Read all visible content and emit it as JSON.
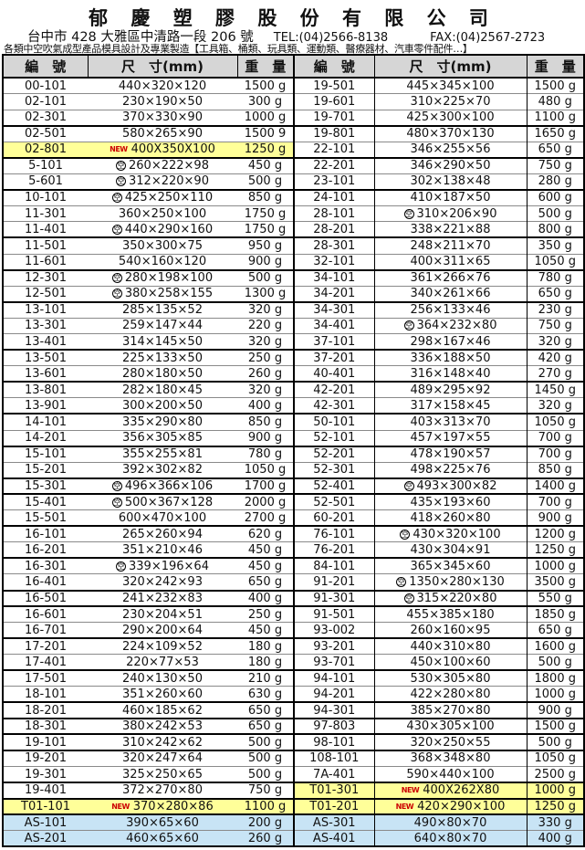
{
  "header": {
    "company_title": "郁 慶 塑 膠 股 份 有 限 公 司",
    "address": "台中市 428 大雅區中清路一段 206 號",
    "tel": "TEL:(04)2566-8138",
    "fax": "FAX:(04)2567-2723",
    "description": "各類中空吹氣成型產品模具設計及專業製造【工具箱、桶類、玩具類、運動類、醫療器材、汽車零件配件…】"
  },
  "table": {
    "columns": [
      "編　號",
      "尺　寸(mm)",
      "重　量"
    ],
    "air_symbol": "空",
    "new_label": "NEW",
    "colors": {
      "highlight_yellow": "#ffff99",
      "highlight_blue": "#c8e4f5",
      "header_grey": "#d6d6d6",
      "new_red": "#cc0000"
    },
    "rows": [
      {
        "t": false,
        "l": {
          "id": "00-101",
          "size": "440×320×120",
          "wt": "1500 g"
        },
        "r": {
          "id": "19-501",
          "size": "445×345×100",
          "wt": "1500 g"
        }
      },
      {
        "t": false,
        "l": {
          "id": "02-101",
          "size": "230×190×50",
          "wt": "300 g"
        },
        "r": {
          "id": "19-601",
          "size": "310×225×70",
          "wt": "480 g"
        }
      },
      {
        "t": false,
        "l": {
          "id": "02-301",
          "size": "370×330×90",
          "wt": "1000 g"
        },
        "r": {
          "id": "19-701",
          "size": "425×300×100",
          "wt": "1100 g"
        }
      },
      {
        "t": true,
        "l": {
          "id": "02-501",
          "size": "580×265×90",
          "wt": "1500 9"
        },
        "r": {
          "id": "19-801",
          "size": "480×370×130",
          "wt": "1650 g"
        }
      },
      {
        "t": false,
        "l": {
          "id": "02-801",
          "new": true,
          "size": "400X350X100",
          "wt": "1250 g",
          "hl": "yellow"
        },
        "r": {
          "id": "22-101",
          "size": "346×255×56",
          "wt": "650 g"
        }
      },
      {
        "t": true,
        "l": {
          "id": "5-101",
          "air": true,
          "size": "260×222×98",
          "wt": "450 g"
        },
        "r": {
          "id": "22-201",
          "size": "346×290×50",
          "wt": "750 g"
        }
      },
      {
        "t": false,
        "l": {
          "id": "5-601",
          "air": true,
          "size": "312×220×90",
          "wt": "500 g"
        },
        "r": {
          "id": "23-101",
          "size": "302×138×48",
          "wt": "280 g"
        }
      },
      {
        "t": true,
        "l": {
          "id": "10-101",
          "air": true,
          "size": "425×250×110",
          "wt": "850 g"
        },
        "r": {
          "id": "24-101",
          "size": "410×187×50",
          "wt": "600 g"
        }
      },
      {
        "t": false,
        "l": {
          "id": "11-301",
          "size": "360×250×100",
          "wt": "1750 g"
        },
        "r": {
          "id": "28-101",
          "air": true,
          "size": "310×206×90",
          "wt": "500 g"
        }
      },
      {
        "t": false,
        "l": {
          "id": "11-401",
          "air": true,
          "size": "440×290×160",
          "wt": "1750 g"
        },
        "r": {
          "id": "28-201",
          "size": "338×221×88",
          "wt": "800 g"
        }
      },
      {
        "t": true,
        "l": {
          "id": "11-501",
          "size": "350×300×75",
          "wt": "950 g"
        },
        "r": {
          "id": "28-301",
          "size": "248×211×70",
          "wt": "350 g"
        }
      },
      {
        "t": false,
        "l": {
          "id": "11-601",
          "size": "540×160×120",
          "wt": "900 g"
        },
        "r": {
          "id": "32-101",
          "size": "400×311×65",
          "wt": "1050 g"
        }
      },
      {
        "t": true,
        "l": {
          "id": "12-301",
          "air": true,
          "size": "280×198×100",
          "wt": "500 g"
        },
        "r": {
          "id": "34-101",
          "size": "361×266×76",
          "wt": "780 g"
        }
      },
      {
        "t": false,
        "l": {
          "id": "12-501",
          "air": true,
          "size": "380×258×155",
          "wt": "1300 g"
        },
        "r": {
          "id": "34-201",
          "size": "340×261×66",
          "wt": "650 g"
        }
      },
      {
        "t": true,
        "l": {
          "id": "13-101",
          "size": "285×135×52",
          "wt": "320 g"
        },
        "r": {
          "id": "34-301",
          "size": "256×133×46",
          "wt": "230 g"
        }
      },
      {
        "t": false,
        "l": {
          "id": "13-301",
          "size": "259×147×44",
          "wt": "220 g"
        },
        "r": {
          "id": "34-401",
          "air": true,
          "size": "364×232×80",
          "wt": "750 g"
        }
      },
      {
        "t": false,
        "l": {
          "id": "13-401",
          "size": "314×145×50",
          "wt": "320 g"
        },
        "r": {
          "id": "37-101",
          "size": "298×167×46",
          "wt": "320 g"
        }
      },
      {
        "t": true,
        "l": {
          "id": "13-501",
          "size": "225×133×50",
          "wt": "250 g"
        },
        "r": {
          "id": "37-201",
          "size": "336×188×50",
          "wt": "420 g"
        }
      },
      {
        "t": false,
        "l": {
          "id": "13-601",
          "size": "280×180×50",
          "wt": "260 g"
        },
        "r": {
          "id": "40-401",
          "size": "316×148×40",
          "wt": "270 g"
        }
      },
      {
        "t": true,
        "l": {
          "id": "13-801",
          "size": "282×180×45",
          "wt": "320 g"
        },
        "r": {
          "id": "42-201",
          "size": "489×295×92",
          "wt": "1450 g"
        }
      },
      {
        "t": false,
        "l": {
          "id": "13-901",
          "size": "300×200×50",
          "wt": "400 g"
        },
        "r": {
          "id": "42-301",
          "size": "317×158×45",
          "wt": "320 g"
        }
      },
      {
        "t": true,
        "l": {
          "id": "14-101",
          "size": "335×290×80",
          "wt": "850 g"
        },
        "r": {
          "id": "50-101",
          "size": "403×313×70",
          "wt": "1050 g"
        }
      },
      {
        "t": false,
        "l": {
          "id": "14-201",
          "size": "356×305×85",
          "wt": "900 g"
        },
        "r": {
          "id": "52-101",
          "size": "457×197×55",
          "wt": "700 g"
        }
      },
      {
        "t": true,
        "l": {
          "id": "15-101",
          "size": "355×255×81",
          "wt": "780 g"
        },
        "r": {
          "id": "52-201",
          "size": "478×190×57",
          "wt": "700 g"
        }
      },
      {
        "t": false,
        "l": {
          "id": "15-201",
          "size": "392×302×82",
          "wt": "1050 g"
        },
        "r": {
          "id": "52-301",
          "size": "498×225×76",
          "wt": "850 g"
        }
      },
      {
        "t": true,
        "l": {
          "id": "15-301",
          "air": true,
          "size": "496×366×106",
          "wt": "1700 g"
        },
        "r": {
          "id": "52-401",
          "air": true,
          "size": "493×300×82",
          "wt": "1400 g"
        }
      },
      {
        "t": true,
        "l": {
          "id": "15-401",
          "air": true,
          "size": "500×367×128",
          "wt": "2000 g"
        },
        "r": {
          "id": "52-501",
          "size": "435×193×60",
          "wt": "700 g"
        }
      },
      {
        "t": false,
        "l": {
          "id": "15-501",
          "size": "600×470×100",
          "wt": "2700 g"
        },
        "r": {
          "id": "60-201",
          "size": "418×260×80",
          "wt": "900 g"
        }
      },
      {
        "t": true,
        "l": {
          "id": "16-101",
          "size": "265×260×94",
          "wt": "620 g"
        },
        "r": {
          "id": "76-101",
          "air": true,
          "size": "430×320×100",
          "wt": "1200 g"
        }
      },
      {
        "t": false,
        "l": {
          "id": "16-201",
          "size": "351×210×46",
          "wt": "450 g"
        },
        "r": {
          "id": "76-201",
          "size": "430×304×91",
          "wt": "1250 g"
        }
      },
      {
        "t": true,
        "l": {
          "id": "16-301",
          "air": true,
          "size": "339×196×64",
          "wt": "450 g"
        },
        "r": {
          "id": "84-101",
          "size": "365×345×60",
          "wt": "1000 g"
        }
      },
      {
        "t": false,
        "l": {
          "id": "16-401",
          "size": "320×242×93",
          "wt": "650 g"
        },
        "r": {
          "id": "91-201",
          "air": true,
          "size": "1350×280×130",
          "wt": "3500 g"
        }
      },
      {
        "t": true,
        "l": {
          "id": "16-501",
          "size": "241×232×83",
          "wt": "400 g"
        },
        "r": {
          "id": "91-301",
          "air": true,
          "size": "315×220×80",
          "wt": "550 g"
        }
      },
      {
        "t": true,
        "l": {
          "id": "16-601",
          "size": "230×204×51",
          "wt": "250 g"
        },
        "r": {
          "id": "91-501",
          "size": "455×385×180",
          "wt": "1850 g"
        }
      },
      {
        "t": false,
        "l": {
          "id": "16-701",
          "size": "290×200×64",
          "wt": "450 g"
        },
        "r": {
          "id": "93-002",
          "size": "260×160×95",
          "wt": "650 g"
        }
      },
      {
        "t": true,
        "l": {
          "id": "17-201",
          "size": "224×109×52",
          "wt": "180 g"
        },
        "r": {
          "id": "93-201",
          "size": "440×310×80",
          "wt": "1600 g"
        }
      },
      {
        "t": false,
        "l": {
          "id": "17-401",
          "size": "220×77×53",
          "wt": "180 g"
        },
        "r": {
          "id": "93-701",
          "size": "450×100×60",
          "wt": "500 g"
        }
      },
      {
        "t": true,
        "l": {
          "id": "17-501",
          "size": "240×130×50",
          "wt": "210 g"
        },
        "r": {
          "id": "94-101",
          "size": "530×305×80",
          "wt": "1800 g"
        }
      },
      {
        "t": false,
        "l": {
          "id": "18-101",
          "size": "351×260×60",
          "wt": "630 g"
        },
        "r": {
          "id": "94-201",
          "size": "422×280×80",
          "wt": "1000 g"
        }
      },
      {
        "t": true,
        "l": {
          "id": "18-201",
          "size": "460×185×62",
          "wt": "650 g"
        },
        "r": {
          "id": "94-301",
          "size": "385×270×80",
          "wt": "900 g"
        }
      },
      {
        "t": true,
        "l": {
          "id": "18-301",
          "size": "380×242×53",
          "wt": "650 g"
        },
        "r": {
          "id": "97-803",
          "size": "430×305×100",
          "wt": "1500 g"
        }
      },
      {
        "t": true,
        "l": {
          "id": "19-101",
          "size": "310×242×62",
          "wt": "500 g"
        },
        "r": {
          "id": "98-101",
          "size": "320×250×55",
          "wt": "500 g"
        }
      },
      {
        "t": true,
        "l": {
          "id": "19-201",
          "size": "320×247×64",
          "wt": "500 g"
        },
        "r": {
          "id": "108-101",
          "size": "368×348×80",
          "wt": "1050 g"
        }
      },
      {
        "t": false,
        "l": {
          "id": "19-301",
          "size": "325×250×65",
          "wt": "500 g"
        },
        "r": {
          "id": "7A-401",
          "size": "590×440×100",
          "wt": "2500 g"
        }
      },
      {
        "t": true,
        "l": {
          "id": "19-401",
          "size": "372×270×80",
          "wt": "750 g"
        },
        "r": {
          "id": "T01-301",
          "new": true,
          "size": "400X262X80",
          "wt": "1000 g",
          "hl": "yellow"
        }
      },
      {
        "t": true,
        "l": {
          "id": "T01-101",
          "new": true,
          "size": "370×280×86",
          "wt": "1100 g",
          "hl": "yellow"
        },
        "r": {
          "id": "T01-201",
          "new": true,
          "size": "420×290×100",
          "wt": "1250 g",
          "hl": "yellow"
        }
      },
      {
        "t": true,
        "l": {
          "id": "AS-101",
          "size": "390×65×60",
          "wt": "200 g",
          "hl": "blue"
        },
        "r": {
          "id": "AS-301",
          "size": "490×80×70",
          "wt": "330 g",
          "hl": "blue"
        }
      },
      {
        "t": false,
        "l": {
          "id": "AS-201",
          "size": "460×65×60",
          "wt": "260 g",
          "hl": "blue"
        },
        "r": {
          "id": "AS-401",
          "size": "640×80×70",
          "wt": "400 g",
          "hl": "blue"
        }
      }
    ]
  }
}
